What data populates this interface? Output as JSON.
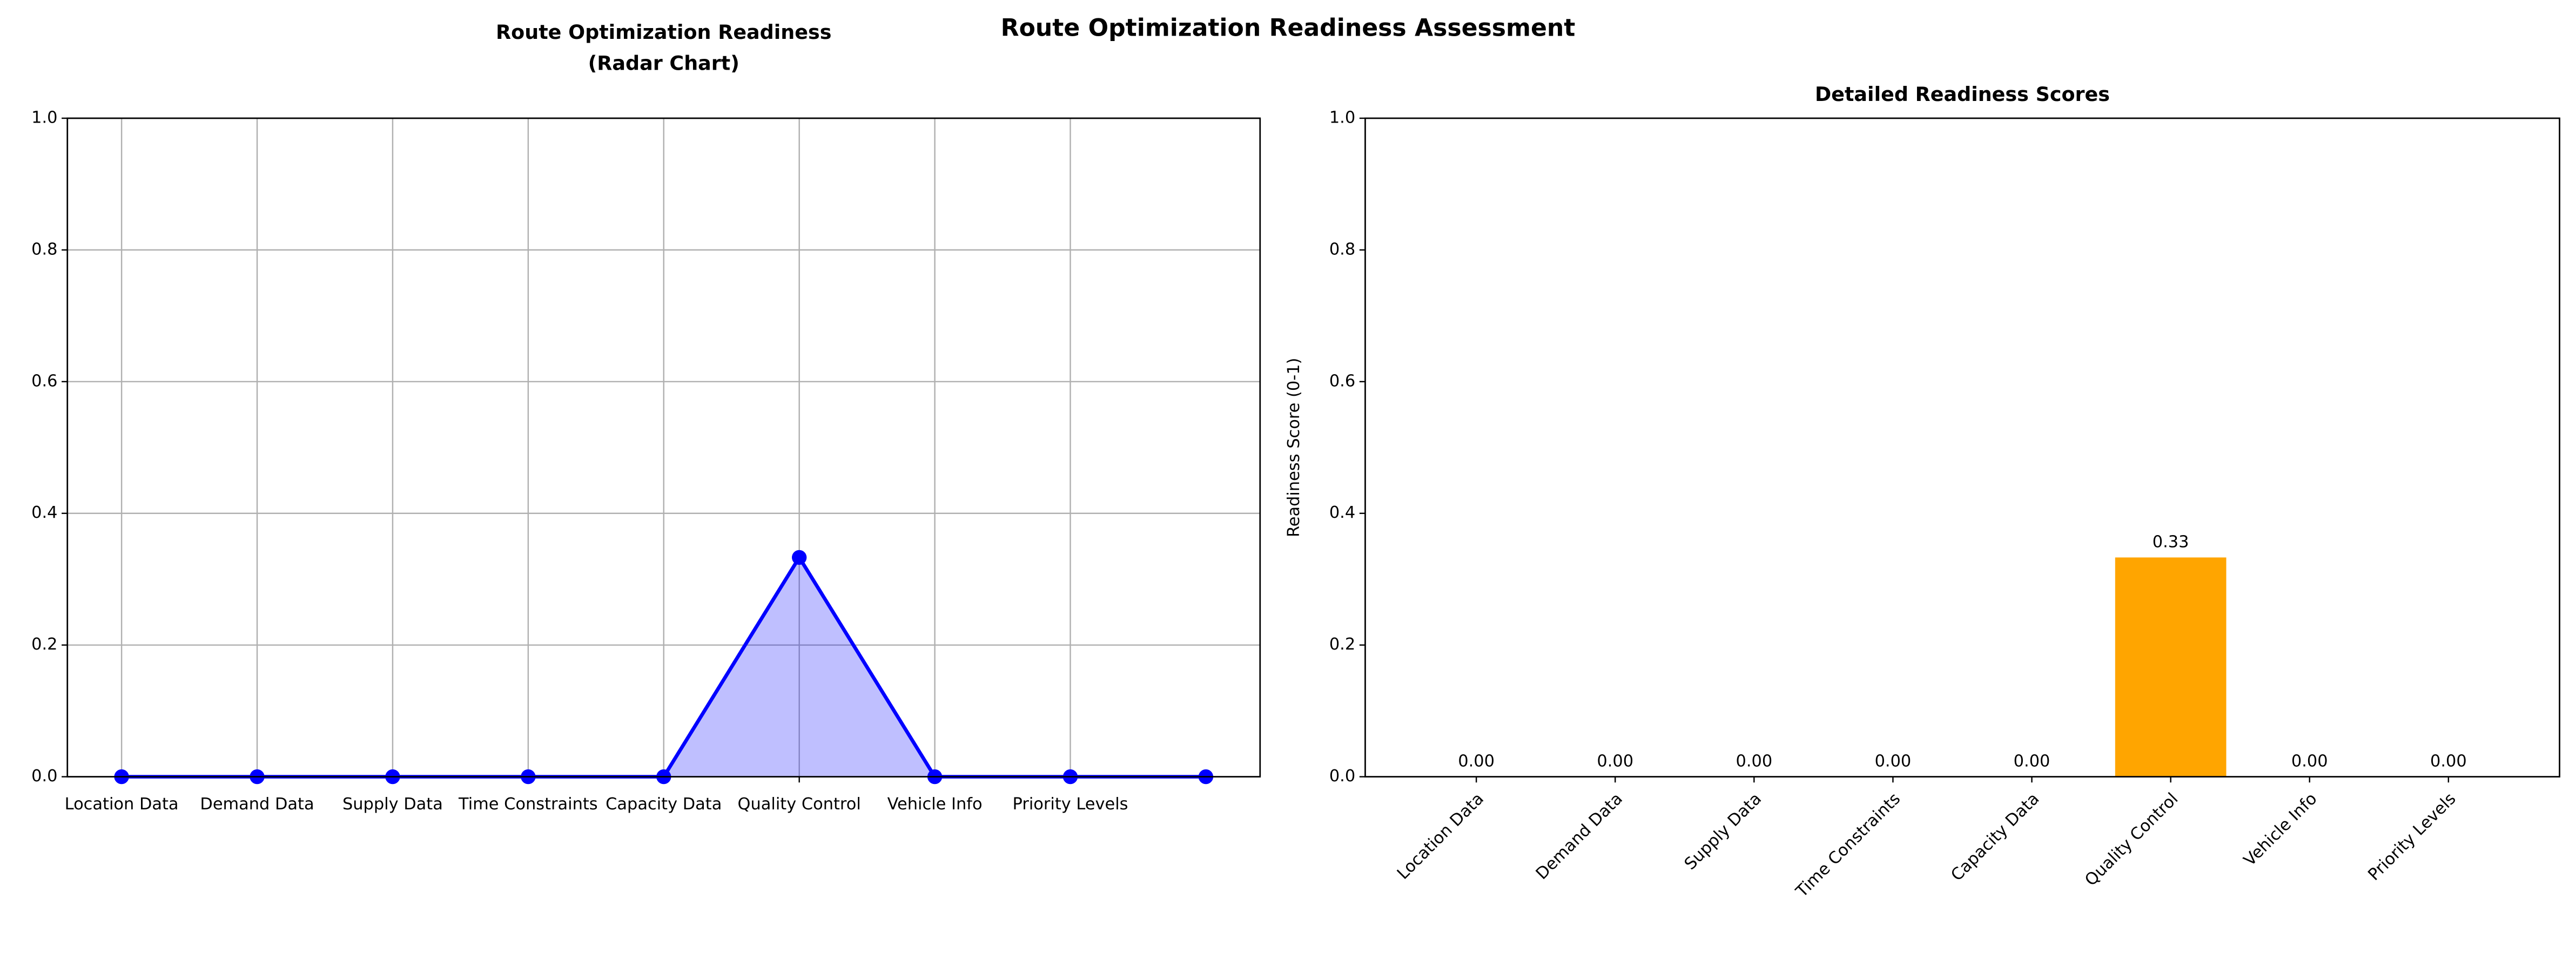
{
  "title": "Route Optimization Readiness Assessment",
  "chart_data": [
    {
      "type": "line",
      "title": "Route Optimization Readiness\n(Radar Chart)",
      "categories": [
        "Location Data",
        "Demand Data",
        "Supply Data",
        "Time Constraints",
        "Capacity Data",
        "Quality Control",
        "Vehicle Info",
        "Priority Levels",
        null
      ],
      "values": [
        0,
        0,
        0,
        0,
        0,
        0.333,
        0,
        0,
        0
      ],
      "color": "#0000ff",
      "fill": true,
      "marker": true,
      "ylim": [
        0,
        1
      ],
      "yticks": [
        {
          "value": 0,
          "label": "0.0"
        },
        {
          "value": 0.2,
          "label": "0.2"
        },
        {
          "value": 0.4,
          "label": "0.4"
        },
        {
          "value": 0.6,
          "label": "0.6"
        },
        {
          "value": 0.8,
          "label": "0.8"
        },
        {
          "value": 1,
          "label": "1.0"
        }
      ],
      "grid": true
    },
    {
      "type": "bar",
      "title": "Detailed Readiness Scores",
      "ylabel": "Readiness Score (0-1)",
      "categories": [
        "Location Data",
        "Demand Data",
        "Supply Data",
        "Time Constraints",
        "Capacity Data",
        "Quality Control",
        "Vehicle Info",
        "Priority Levels"
      ],
      "values": [
        0,
        0,
        0,
        0,
        0,
        0.333,
        0,
        0
      ],
      "value_labels": [
        "0.00",
        "0.00",
        "0.00",
        "0.00",
        "0.00",
        "0.33",
        "0.00",
        "0.00"
      ],
      "color": "#ffa500",
      "ylim": [
        0,
        1
      ],
      "yticks": [
        {
          "value": 0,
          "label": "0.0"
        },
        {
          "value": 0.2,
          "label": "0.2"
        },
        {
          "value": 0.4,
          "label": "0.4"
        },
        {
          "value": 0.6,
          "label": "0.6"
        },
        {
          "value": 0.8,
          "label": "0.8"
        },
        {
          "value": 1,
          "label": "1.0"
        }
      ],
      "grid": false
    }
  ]
}
